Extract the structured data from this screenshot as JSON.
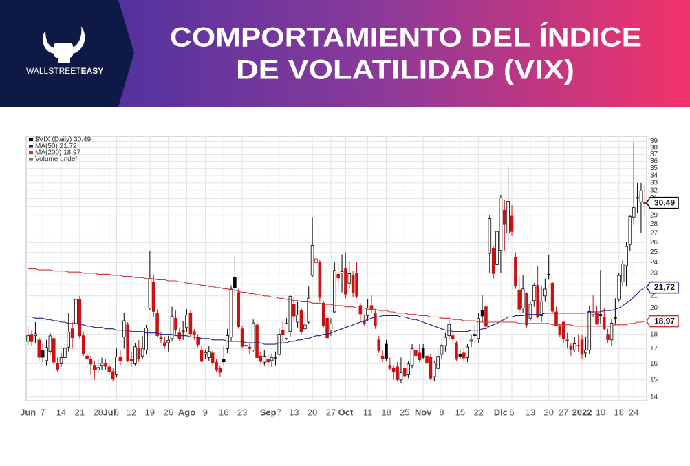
{
  "header": {
    "brand_light": "WALLSTREET",
    "brand_bold": "EASY",
    "title_line1": "COMPORTAMIENTO DEL ÍNDICE",
    "title_line2": "DE VOLATILIDAD (VIX)"
  },
  "chart_data": {
    "type": "candlestick",
    "legend_title": "$VIX (Daily) 30.49",
    "legend_extra": "Volume undef",
    "last_label": "30,49",
    "up_color": "#000000",
    "down_color": "#cc1111",
    "log_scale": true,
    "grid": true,
    "ylim": [
      13.8,
      39.8
    ],
    "yticks": [
      14,
      15,
      16,
      17,
      18,
      19,
      20,
      21,
      22,
      23,
      24,
      25,
      26,
      27,
      28,
      29,
      30,
      31,
      32,
      33,
      34,
      35,
      36,
      37,
      38,
      39
    ],
    "categories": [
      "Jun",
      null,
      null,
      null,
      "7",
      null,
      null,
      null,
      null,
      "14",
      null,
      null,
      null,
      null,
      "21",
      null,
      null,
      null,
      null,
      "28",
      null,
      null,
      "Jul",
      null,
      "6",
      null,
      null,
      null,
      "12",
      null,
      null,
      null,
      null,
      "19",
      null,
      null,
      null,
      null,
      "26",
      null,
      null,
      null,
      null,
      "Ago",
      null,
      null,
      null,
      null,
      "9",
      null,
      null,
      null,
      null,
      "16",
      null,
      null,
      null,
      null,
      "23",
      null,
      null,
      null,
      null,
      null,
      null,
      "Sep",
      null,
      null,
      "7",
      null,
      null,
      null,
      "13",
      null,
      null,
      null,
      null,
      "20",
      null,
      null,
      null,
      null,
      "27",
      null,
      null,
      null,
      "Oct",
      null,
      null,
      null,
      null,
      null,
      "11",
      null,
      null,
      null,
      null,
      "18",
      null,
      null,
      null,
      null,
      "25",
      null,
      null,
      null,
      null,
      "Nov",
      null,
      null,
      null,
      null,
      "8",
      null,
      null,
      null,
      null,
      "15",
      null,
      null,
      null,
      null,
      "22",
      null,
      null,
      null,
      null,
      null,
      "Dic",
      null,
      null,
      "6",
      null,
      null,
      null,
      null,
      "13",
      null,
      null,
      null,
      null,
      "20",
      null,
      null,
      null,
      "27",
      null,
      null,
      null,
      null,
      "2022",
      null,
      null,
      null,
      null,
      "10",
      null,
      null,
      null,
      null,
      "18",
      null,
      null,
      null,
      "24",
      null,
      null,
      null
    ],
    "open": [
      17.5,
      18.0,
      17.9,
      17.6,
      16.9,
      16.2,
      16.8,
      17.7,
      16.0,
      16.0,
      16.4,
      17.1,
      18.4,
      18.8,
      20.7,
      17.9,
      16.5,
      16.3,
      15.9,
      15.6,
      15.9,
      16.0,
      15.8,
      15.5,
      15.3,
      16.4,
      17.8,
      18.7,
      16.3,
      16.0,
      17.0,
      16.5,
      16.9,
      20.0,
      22.2,
      19.6,
      17.8,
      17.4,
      17.4,
      17.7,
      19.2,
      18.1,
      18.2,
      18.5,
      19.6,
      18.2,
      17.8,
      16.9,
      16.6,
      16.4,
      16.7,
      16.1,
      15.7,
      16.3,
      17.0,
      17.8,
      22.6,
      21.3,
      18.4,
      17.2,
      17.1,
      16.9,
      18.7,
      16.5,
      16.1,
      16.3,
      16.2,
      16.4,
      16.6,
      18.3,
      17.7,
      18.2,
      20.3,
      18.9,
      19.8,
      18.4,
      18.9,
      22.8,
      24.0,
      24.0,
      20.4,
      19.2,
      18.3,
      19.7,
      22.9,
      23.0,
      23.4,
      22.1,
      22.8,
      23.0,
      20.2,
      19.0,
      19.4,
      20.2,
      19.6,
      17.6,
      16.5,
      17.3,
      15.9,
      15.7,
      15.8,
      15.0,
      15.7,
      15.3,
      15.9,
      16.9,
      16.7,
      17.0,
      16.5,
      16.4,
      15.2,
      15.7,
      16.6,
      17.2,
      17.9,
      17.9,
      17.4,
      16.6,
      16.7,
      16.4,
      17.5,
      18.0,
      17.7,
      19.8,
      20.1,
      24.9,
      25.4,
      23.8,
      25.2,
      29.6,
      27.0,
      28.9,
      24.5,
      21.5,
      20.0,
      21.2,
      19.2,
      20.6,
      21.9,
      19.4,
      21.0,
      22.9,
      22.1,
      19.7,
      18.6,
      18.9,
      17.6,
      17.2,
      16.9,
      17.2,
      17.6,
      16.7,
      16.9,
      19.5,
      19.6,
      19.5,
      19.3,
      18.0,
      17.6,
      19.3,
      20.7,
      22.2,
      23.7,
      25.8,
      28.8,
      31.1,
      30.6,
      30.5
    ],
    "high": [
      18.6,
      18.3,
      18.9,
      17.8,
      17.3,
      17.6,
      18.1,
      17.8,
      16.4,
      16.7,
      17.3,
      19.6,
      18.9,
      22.1,
      21.0,
      18.2,
      16.8,
      16.5,
      16.2,
      16.3,
      16.4,
      16.3,
      16.0,
      15.7,
      17.0,
      16.9,
      19.6,
      18.9,
      16.8,
      17.4,
      17.6,
      17.9,
      18.7,
      25.1,
      22.8,
      19.9,
      18.2,
      17.8,
      17.9,
      20.1,
      19.8,
      18.5,
      19.0,
      19.9,
      19.8,
      18.4,
      18.0,
      17.2,
      16.9,
      17.2,
      16.9,
      16.3,
      15.9,
      17.2,
      18.4,
      21.9,
      24.7,
      21.6,
      18.6,
      17.6,
      17.4,
      19.1,
      18.9,
      16.8,
      16.9,
      16.6,
      16.6,
      16.8,
      18.4,
      19.0,
      19.2,
      21.1,
      20.9,
      20.5,
      20.0,
      19.7,
      21.8,
      28.8,
      24.8,
      24.3,
      20.6,
      19.5,
      19.2,
      24.0,
      23.9,
      24.8,
      25.0,
      24.1,
      23.2,
      24.1,
      20.4,
      19.5,
      20.7,
      21.1,
      19.9,
      17.9,
      16.9,
      17.6,
      16.4,
      15.9,
      16.1,
      16.4,
      16.0,
      16.2,
      17.3,
      17.1,
      17.3,
      17.3,
      17.1,
      16.6,
      16.2,
      17.0,
      17.3,
      18.1,
      19.1,
      18.1,
      17.5,
      16.9,
      17.0,
      17.3,
      18.0,
      18.7,
      19.6,
      21.1,
      20.7,
      28.99,
      25.6,
      28.2,
      31.4,
      30.8,
      35.3,
      30.2,
      25.0,
      22.7,
      22.8,
      21.3,
      20.5,
      22.1,
      23.7,
      21.9,
      22.5,
      24.7,
      22.2,
      20.1,
      18.8,
      19.0,
      18.1,
      17.4,
      17.8,
      18.0,
      18.0,
      17.8,
      20.2,
      21.1,
      20.2,
      23.3,
      20.0,
      18.4,
      19.1,
      20.8,
      23.0,
      24.3,
      26.1,
      29.0,
      38.9,
      33.0,
      33.0,
      32.9
    ],
    "low": [
      17.2,
      17.2,
      17.4,
      16.2,
      16.1,
      15.9,
      16.6,
      15.9,
      15.5,
      15.8,
      16.2,
      16.8,
      17.0,
      17.9,
      17.7,
      16.5,
      15.8,
      15.3,
      15.0,
      15.4,
      15.6,
      15.6,
      15.3,
      14.9,
      15.2,
      15.9,
      17.0,
      16.1,
      15.8,
      15.9,
      16.1,
      16.3,
      16.6,
      19.8,
      19.3,
      17.8,
      17.4,
      17.0,
      16.8,
      17.5,
      18.0,
      17.5,
      17.6,
      18.2,
      17.8,
      17.6,
      17.1,
      16.1,
      16.3,
      16.2,
      15.9,
      15.5,
      15.2,
      15.9,
      16.7,
      17.5,
      21.1,
      18.4,
      17.0,
      16.9,
      16.6,
      16.8,
      16.2,
      16.0,
      15.9,
      15.9,
      15.8,
      15.9,
      16.5,
      17.5,
      17.6,
      17.8,
      18.9,
      18.5,
      18.0,
      18.2,
      18.8,
      22.6,
      23.2,
      20.5,
      18.5,
      17.6,
      17.9,
      19.6,
      21.8,
      21.3,
      20.8,
      21.7,
      20.9,
      20.8,
      19.0,
      18.6,
      19.0,
      19.6,
      18.4,
      16.7,
      16.1,
      16.2,
      15.6,
      15.0,
      14.9,
      14.8,
      15.0,
      15.1,
      15.7,
      16.2,
      16.1,
      16.3,
      15.9,
      15.0,
      14.9,
      15.5,
      16.3,
      16.8,
      17.6,
      17.5,
      16.2,
      16.3,
      16.2,
      16.1,
      17.1,
      17.4,
      17.4,
      18.9,
      18.3,
      23.0,
      22.5,
      22.5,
      23.0,
      25.2,
      26.0,
      26.7,
      21.6,
      19.6,
      19.6,
      18.5,
      19.0,
      20.1,
      19.2,
      18.9,
      20.5,
      22.4,
      19.6,
      18.6,
      17.8,
      17.4,
      17.0,
      16.5,
      16.8,
      16.8,
      16.3,
      16.4,
      16.6,
      19.3,
      18.7,
      18.8,
      18.3,
      17.4,
      17.2,
      18.7,
      20.5,
      21.8,
      21.8,
      25.1,
      27.9,
      29.3,
      27.0,
      28.9
    ],
    "close": [
      17.9,
      17.48,
      18.04,
      16.42,
      16.42,
      17.07,
      17.89,
      16.1,
      15.65,
      16.39,
      17.02,
      18.15,
      17.75,
      20.7,
      17.89,
      16.66,
      16.32,
      15.97,
      15.62,
      15.76,
      16.02,
      15.83,
      15.48,
      15.07,
      16.44,
      16.2,
      19.0,
      16.18,
      16.17,
      17.12,
      16.33,
      17.01,
      18.45,
      22.5,
      19.73,
      17.91,
      17.69,
      17.2,
      17.58,
      19.36,
      18.31,
      17.7,
      18.24,
      19.46,
      18.04,
      17.97,
      17.28,
      16.15,
      16.72,
      16.79,
      16.06,
      15.59,
      15.45,
      16.12,
      17.91,
      21.57,
      21.67,
      18.56,
      17.15,
      17.22,
      17.0,
      18.84,
      16.39,
      16.15,
      16.48,
      16.11,
      16.41,
      16.41,
      18.0,
      17.96,
      18.8,
      20.95,
      19.37,
      19.46,
      18.18,
      18.69,
      20.81,
      25.71,
      24.36,
      20.87,
      18.63,
      17.75,
      18.76,
      23.25,
      22.56,
      23.14,
      21.15,
      22.96,
      21.3,
      20.98,
      19.54,
      18.77,
      20.0,
      19.85,
      18.64,
      16.86,
      16.3,
      16.3,
      15.7,
      15.49,
      15.01,
      15.43,
      15.24,
      15.98,
      16.98,
      16.53,
      16.26,
      16.41,
      16.03,
      15.1,
      16.03,
      16.48,
      17.22,
      17.78,
      18.73,
      17.66,
      16.29,
      16.49,
      16.37,
      17.11,
      17.59,
      17.91,
      19.17,
      19.38,
      18.58,
      28.62,
      22.96,
      27.19,
      31.12,
      27.95,
      30.67,
      27.18,
      21.89,
      19.9,
      21.58,
      18.69,
      20.31,
      21.89,
      19.29,
      20.57,
      21.57,
      22.87,
      19.75,
      18.63,
      17.96,
      17.68,
      17.54,
      16.95,
      17.33,
      17.22,
      16.6,
      16.91,
      19.73,
      19.61,
      18.76,
      19.4,
      18.41,
      17.62,
      18.83,
      19.19,
      22.79,
      23.85,
      25.59,
      28.85,
      29.9,
      31.16,
      31.96,
      30.49
    ],
    "series": [
      {
        "name": "MA(50) 21.72",
        "color": "#1f1f8f",
        "last_label": "21,72",
        "values": [
          19.3,
          19.3,
          19.2,
          19.2,
          19.2,
          19.1,
          19.1,
          19.0,
          19.0,
          18.9,
          18.9,
          18.8,
          18.8,
          18.8,
          18.7,
          18.7,
          18.6,
          18.6,
          18.5,
          18.5,
          18.5,
          18.4,
          18.4,
          18.4,
          18.3,
          18.3,
          18.3,
          18.3,
          18.2,
          18.2,
          18.2,
          18.2,
          18.1,
          18.1,
          18.1,
          18.1,
          18.0,
          18.0,
          18.0,
          18.0,
          17.9,
          17.9,
          17.9,
          17.9,
          17.8,
          17.8,
          17.8,
          17.7,
          17.7,
          17.7,
          17.6,
          17.6,
          17.6,
          17.6,
          17.5,
          17.5,
          17.5,
          17.5,
          17.5,
          17.4,
          17.4,
          17.4,
          17.4,
          17.4,
          17.3,
          17.3,
          17.3,
          17.3,
          17.4,
          17.4,
          17.4,
          17.5,
          17.5,
          17.6,
          17.6,
          17.7,
          17.7,
          17.8,
          17.9,
          17.9,
          18.0,
          18.0,
          18.1,
          18.2,
          18.3,
          18.4,
          18.5,
          18.6,
          18.7,
          18.8,
          18.9,
          19.0,
          19.1,
          19.2,
          19.3,
          19.3,
          19.4,
          19.4,
          19.4,
          19.4,
          19.4,
          19.3,
          19.3,
          19.2,
          19.1,
          19.1,
          19.0,
          18.9,
          18.8,
          18.7,
          18.6,
          18.5,
          18.4,
          18.3,
          18.3,
          18.2,
          18.2,
          18.2,
          18.2,
          18.2,
          18.3,
          18.3,
          18.3,
          18.4,
          18.4,
          18.6,
          18.7,
          18.8,
          19.0,
          19.1,
          19.3,
          19.3,
          19.4,
          19.4,
          19.4,
          19.5,
          19.5,
          19.5,
          19.5,
          19.5,
          19.6,
          19.6,
          19.6,
          19.6,
          19.6,
          19.6,
          19.6,
          19.6,
          19.6,
          19.6,
          19.6,
          19.6,
          19.7,
          19.7,
          19.7,
          19.7,
          19.8,
          19.8,
          19.8,
          19.9,
          20.0,
          20.2,
          20.4,
          20.6,
          20.9,
          21.2,
          21.5,
          21.72
        ]
      },
      {
        "name": "MA(200) 18.97",
        "color": "#cc3333",
        "last_label": "18,97",
        "values": [
          23.4,
          23.4,
          23.4,
          23.3,
          23.3,
          23.3,
          23.3,
          23.2,
          23.2,
          23.2,
          23.2,
          23.1,
          23.1,
          23.1,
          23.1,
          23.0,
          23.0,
          23.0,
          23.0,
          22.9,
          22.9,
          22.9,
          22.9,
          22.8,
          22.8,
          22.8,
          22.7,
          22.7,
          22.7,
          22.6,
          22.6,
          22.6,
          22.5,
          22.5,
          22.5,
          22.4,
          22.4,
          22.4,
          22.3,
          22.3,
          22.3,
          22.2,
          22.2,
          22.1,
          22.1,
          22.0,
          22.0,
          21.9,
          21.9,
          21.8,
          21.8,
          21.7,
          21.7,
          21.6,
          21.6,
          21.5,
          21.5,
          21.4,
          21.3,
          21.3,
          21.2,
          21.2,
          21.1,
          21.1,
          21.0,
          21.0,
          20.9,
          20.9,
          20.8,
          20.8,
          20.7,
          20.7,
          20.6,
          20.6,
          20.5,
          20.5,
          20.5,
          20.4,
          20.4,
          20.4,
          20.3,
          20.3,
          20.3,
          20.2,
          20.2,
          20.2,
          20.1,
          20.1,
          20.1,
          20.0,
          20.0,
          20.0,
          19.9,
          19.9,
          19.9,
          19.8,
          19.8,
          19.8,
          19.7,
          19.7,
          19.6,
          19.6,
          19.6,
          19.5,
          19.5,
          19.5,
          19.4,
          19.4,
          19.4,
          19.3,
          19.3,
          19.3,
          19.2,
          19.2,
          19.2,
          19.1,
          19.1,
          19.1,
          19.0,
          19.0,
          19.0,
          19.0,
          18.9,
          18.9,
          18.9,
          18.9,
          18.9,
          18.9,
          18.9,
          18.9,
          18.9,
          18.9,
          18.9,
          18.8,
          18.8,
          18.8,
          18.8,
          18.8,
          18.8,
          18.8,
          18.8,
          18.8,
          18.7,
          18.7,
          18.7,
          18.7,
          18.7,
          18.7,
          18.6,
          18.6,
          18.6,
          18.6,
          18.6,
          18.6,
          18.6,
          18.6,
          18.6,
          18.6,
          18.6,
          18.7,
          18.7,
          18.7,
          18.7,
          18.8,
          18.8,
          18.9,
          18.9,
          18.97
        ]
      }
    ]
  }
}
